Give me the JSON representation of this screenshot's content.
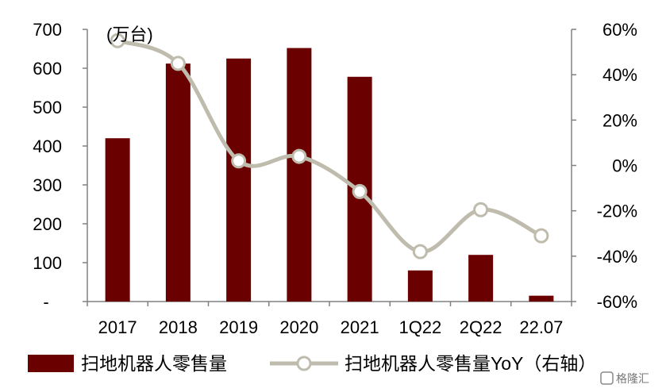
{
  "chart_data": {
    "type": "bar+line",
    "unit_label": "(万台)",
    "categories": [
      "2017",
      "2018",
      "2019",
      "2020",
      "2021",
      "1Q22",
      "2Q22",
      "22.07"
    ],
    "series": [
      {
        "name": "扫地机器人零售量",
        "type": "bar",
        "axis": "left",
        "values": [
          420,
          612,
          625,
          652,
          578,
          80,
          120,
          15
        ]
      },
      {
        "name": "扫地机器人零售量YoY（右轴）",
        "type": "line",
        "axis": "right",
        "values": [
          0.55,
          0.45,
          0.02,
          0.04,
          -0.115,
          -0.38,
          -0.195,
          -0.31
        ]
      }
    ],
    "y_left": {
      "ylim": [
        0,
        700
      ],
      "ticks": [
        0,
        100,
        200,
        300,
        400,
        500,
        600,
        700
      ],
      "tick_labels": [
        "-",
        "100",
        "200",
        "300",
        "400",
        "500",
        "600",
        "700"
      ]
    },
    "y_right": {
      "ylim": [
        -0.6,
        0.6
      ],
      "ticks": [
        -0.6,
        -0.4,
        -0.2,
        0,
        0.2,
        0.4,
        0.6
      ],
      "tick_labels": [
        "-60%",
        "-40%",
        "-20%",
        "0%",
        "20%",
        "40%",
        "60%"
      ]
    },
    "grid": false,
    "legend": "bottom",
    "colors": {
      "bar": "#6b0000",
      "line": "#bfbcae",
      "marker_fill": "#ffffff",
      "axis": "#808080"
    }
  },
  "watermark": "格隆汇"
}
